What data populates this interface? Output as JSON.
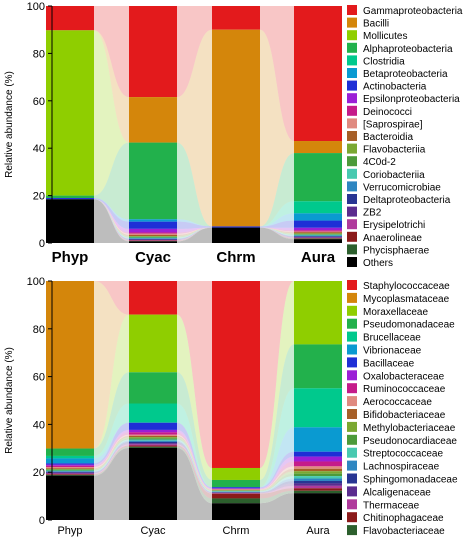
{
  "chart_data": [
    {
      "type": "area",
      "ylabel": "Relative abundance (%)",
      "ylim": [
        0,
        100
      ],
      "yticks": [
        0,
        20,
        40,
        60,
        80,
        100
      ],
      "categories": [
        "Phyp",
        "Cyac",
        "Chrm",
        "Aura"
      ],
      "legend_position": "right",
      "series": [
        {
          "name": "Gammaproteobacteria",
          "color": "#e31a1c",
          "values": [
            10,
            38,
            10,
            56
          ]
        },
        {
          "name": "Bacilli",
          "color": "#d4860b",
          "values": [
            0,
            19,
            83,
            5
          ]
        },
        {
          "name": "Mollicutes",
          "color": "#8fce00",
          "values": [
            68,
            0,
            0,
            0
          ]
        },
        {
          "name": "Alphaproteobacteria",
          "color": "#22b14c",
          "values": [
            1,
            32,
            0,
            20
          ]
        },
        {
          "name": "Clostridia",
          "color": "#00c98d",
          "values": [
            0,
            0,
            0,
            5
          ]
        },
        {
          "name": "Betaproteobacteria",
          "color": "#0a9ad1",
          "values": [
            0,
            1,
            0,
            3
          ]
        },
        {
          "name": "Actinobacteria",
          "color": "#1f2fd6",
          "values": [
            0.5,
            3,
            0.5,
            3
          ]
        },
        {
          "name": "Epsilonproteobacteria",
          "color": "#9b1fd6",
          "values": [
            0,
            1.5,
            0,
            1
          ]
        },
        {
          "name": "Deinococci",
          "color": "#c51b8a",
          "values": [
            0,
            0.5,
            0,
            0.5
          ]
        },
        {
          "name": "[Saprospirae]",
          "color": "#e08a80",
          "values": [
            0,
            0.5,
            0,
            0.3
          ]
        },
        {
          "name": "Bacteroidia",
          "color": "#a65f28",
          "values": [
            0,
            0.5,
            0,
            0.5
          ]
        },
        {
          "name": "Flavobacteriia",
          "color": "#7aa832",
          "values": [
            0,
            0.3,
            0,
            0.3
          ]
        },
        {
          "name": "4C0d-2",
          "color": "#4c9a3a",
          "values": [
            0,
            0.3,
            0,
            0.3
          ]
        },
        {
          "name": "Coriobacteriia",
          "color": "#48c9b0",
          "values": [
            0,
            0.3,
            0,
            0.3
          ]
        },
        {
          "name": "Verrucomicrobiae",
          "color": "#2e86c1",
          "values": [
            0,
            0.3,
            0,
            0.3
          ]
        },
        {
          "name": "Deltaproteobacteria",
          "color": "#283593",
          "values": [
            0,
            0.3,
            0,
            0.3
          ]
        },
        {
          "name": "ZB2",
          "color": "#5b2c8f",
          "values": [
            0,
            0.2,
            0,
            0.3
          ]
        },
        {
          "name": "Erysipelotrichi",
          "color": "#b03a9c",
          "values": [
            0,
            0.2,
            0,
            0.2
          ]
        },
        {
          "name": "Anaerolineae",
          "color": "#8b1a1a",
          "values": [
            0,
            0.2,
            0,
            0.2
          ]
        },
        {
          "name": "Phycisphaerae",
          "color": "#2c5f2d",
          "values": [
            0,
            0.1,
            0,
            0.2
          ]
        },
        {
          "name": "Others",
          "color": "#000000",
          "values": [
            18,
            0.7,
            6.5,
            1.6
          ]
        }
      ]
    },
    {
      "type": "area",
      "ylabel": "Relative abundance (%)",
      "ylim": [
        0,
        100
      ],
      "yticks": [
        0,
        20,
        40,
        60,
        80,
        100
      ],
      "categories": [
        "Phyp",
        "Cyac",
        "Chrm",
        "Aura"
      ],
      "legend_position": "right",
      "series": [
        {
          "name": "Staphylococcaceae",
          "color": "#e31a1c",
          "values": [
            0,
            14,
            78,
            0
          ]
        },
        {
          "name": "Mycoplasmataceae",
          "color": "#d4860b",
          "values": [
            68,
            0,
            0,
            0
          ]
        },
        {
          "name": "Moraxellaceae",
          "color": "#8fce00",
          "values": [
            0,
            24,
            5,
            26
          ]
        },
        {
          "name": "Pseudomonadaceae",
          "color": "#22b14c",
          "values": [
            3,
            13,
            3,
            18
          ]
        },
        {
          "name": "Brucellaceae",
          "color": "#00c98d",
          "values": [
            1,
            8,
            0,
            16
          ]
        },
        {
          "name": "Vibrionaceae",
          "color": "#0a9ad1",
          "values": [
            2,
            0,
            0,
            10
          ]
        },
        {
          "name": "Bacillaceae",
          "color": "#1f2fd6",
          "values": [
            0.5,
            3,
            0.5,
            2
          ]
        },
        {
          "name": "Oxalobacteraceae",
          "color": "#9b1fd6",
          "values": [
            0.5,
            1,
            0.2,
            2
          ]
        },
        {
          "name": "Ruminococcaceae",
          "color": "#c51b8a",
          "values": [
            0.5,
            1,
            0.2,
            2
          ]
        },
        {
          "name": "Aerococcaceae",
          "color": "#e08a80",
          "values": [
            0.5,
            0.5,
            0.2,
            1
          ]
        },
        {
          "name": "Bifidobacteriaceae",
          "color": "#a65f28",
          "values": [
            0.3,
            0.5,
            0.2,
            1
          ]
        },
        {
          "name": "Methylobacteriaceae",
          "color": "#7aa832",
          "values": [
            0.3,
            0.5,
            0.2,
            1
          ]
        },
        {
          "name": "Pseudonocardiaceae",
          "color": "#4c9a3a",
          "values": [
            0.3,
            0.5,
            0.2,
            1
          ]
        },
        {
          "name": "Streptococcaceae",
          "color": "#48c9b0",
          "values": [
            0.3,
            0.5,
            0.2,
            1
          ]
        },
        {
          "name": "Lachnospiraceae",
          "color": "#2e86c1",
          "values": [
            0.3,
            0.5,
            0.2,
            1
          ]
        },
        {
          "name": "Sphingomonadaceae",
          "color": "#283593",
          "values": [
            0.3,
            0.5,
            0.2,
            1
          ]
        },
        {
          "name": "Alcaligenaceae",
          "color": "#5b2c8f",
          "values": [
            0.3,
            0.5,
            0.2,
            1
          ]
        },
        {
          "name": "Thermaceae",
          "color": "#b03a9c",
          "values": [
            0.3,
            0.5,
            0.2,
            1
          ]
        },
        {
          "name": "Chitinophagaceae",
          "color": "#8b1a1a",
          "values": [
            0.3,
            0.5,
            2,
            1
          ]
        },
        {
          "name": "Flavobacteriaceae",
          "color": "#2c5f2d",
          "values": [
            0.3,
            0.5,
            2,
            1
          ]
        },
        {
          "name": "Others",
          "color": "#000000",
          "values": [
            18,
            30,
            7,
            11
          ]
        }
      ]
    }
  ]
}
